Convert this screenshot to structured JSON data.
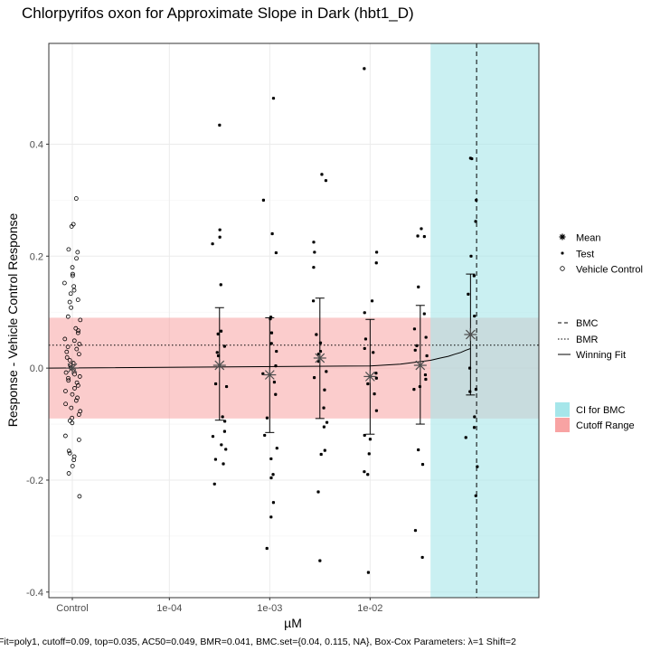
{
  "chart_data": {
    "type": "scatter",
    "title": "Chlorpyrifos oxon for Approximate Slope in Dark (hbt1_D)",
    "xlabel": "µM",
    "ylabel": "Response - Vehicle Control Response",
    "footnote": "Fit=poly1, cutoff=0.09, top=0.035, AC50=0.049, BMR=0.041, BMC.set={0.04, 0.115, NA}, Box-Cox Parameters: λ=1 Shift=2",
    "x_scale": "log10",
    "x_ticks": [
      {
        "label": "Control",
        "value": "control"
      },
      {
        "label": "1e-04",
        "value": 0.0001
      },
      {
        "label": "1e-03",
        "value": 0.001
      },
      {
        "label": "1e-02",
        "value": 0.01
      }
    ],
    "y_ticks": [
      -0.4,
      -0.2,
      0.0,
      0.2,
      0.4
    ],
    "xlim": [
      6.3e-06,
      0.48
    ],
    "ylim": [
      -0.41,
      0.58
    ],
    "grid": true,
    "legend_placement": "right",
    "legend": {
      "markers": [
        {
          "label": "Mean",
          "symbol": "asterisk"
        },
        {
          "label": "Test",
          "symbol": "dot"
        },
        {
          "label": "Vehicle Control",
          "symbol": "open-circle"
        }
      ],
      "lines": [
        {
          "label": "BMC",
          "style": "dashed"
        },
        {
          "label": "BMR",
          "style": "dotted"
        },
        {
          "label": "Winning Fit",
          "style": "solid"
        }
      ],
      "fills": [
        {
          "label": "CI for BMC",
          "color": "#a6e6ea"
        },
        {
          "label": "Cutoff Range",
          "color": "#f8a3a3"
        }
      ]
    },
    "colors": {
      "ci_band": "#a6e6ea",
      "cutoff_band": "#f8a3a3",
      "points": "#000000",
      "mean": "#4d4d4d"
    },
    "cutoff": 0.09,
    "bmr": 0.041,
    "bmc": 0.115,
    "bmc_ci": [
      0.04,
      0.48
    ],
    "fit_curve": {
      "x": [
        6.3e-06,
        0.01,
        0.02,
        0.03,
        0.04,
        0.05,
        0.06,
        0.07,
        0.08,
        0.09,
        0.1
      ],
      "y": [
        0.0,
        0.004,
        0.007,
        0.011,
        0.014,
        0.018,
        0.021,
        0.025,
        0.028,
        0.032,
        0.035
      ]
    },
    "means": [
      {
        "x": "control",
        "mean": 0.0
      },
      {
        "x": 0.000316,
        "mean": 0.005,
        "lower": -0.093,
        "upper": 0.108
      },
      {
        "x": 0.001,
        "mean": -0.012,
        "lower": -0.115,
        "upper": 0.09
      },
      {
        "x": 0.00316,
        "mean": 0.018,
        "lower": -0.09,
        "upper": 0.125
      },
      {
        "x": 0.01,
        "mean": -0.015,
        "lower": -0.118,
        "upper": 0.087
      },
      {
        "x": 0.0316,
        "mean": 0.005,
        "lower": -0.1,
        "upper": 0.112
      },
      {
        "x": 0.1,
        "mean": 0.06,
        "lower": -0.048,
        "upper": 0.168
      }
    ],
    "vehicle_control": [
      0.303,
      0.257,
      0.253,
      0.212,
      0.207,
      0.196,
      0.18,
      0.168,
      0.165,
      0.152,
      0.146,
      0.139,
      0.133,
      0.122,
      0.118,
      0.108,
      0.092,
      0.086,
      0.071,
      0.067,
      0.063,
      0.052,
      0.049,
      0.043,
      0.038,
      0.034,
      0.029,
      0.025,
      0.019,
      0.014,
      0.009,
      0.005,
      0.001,
      -0.003,
      -0.008,
      -0.011,
      -0.015,
      -0.018,
      -0.022,
      -0.026,
      -0.031,
      -0.036,
      -0.041,
      -0.047,
      -0.053,
      -0.058,
      -0.064,
      -0.071,
      -0.077,
      -0.083,
      -0.089,
      -0.094,
      -0.098,
      -0.121,
      -0.128,
      -0.148,
      -0.152,
      -0.158,
      -0.164,
      -0.175,
      -0.188,
      -0.229
    ],
    "test_points": [
      {
        "x": 0.000316,
        "y": [
          0.434,
          0.247,
          0.234,
          0.222,
          0.149,
          0.066,
          0.061,
          0.039,
          0.028,
          0.022,
          -0.028,
          -0.033,
          -0.087,
          -0.095,
          -0.113,
          -0.122,
          -0.137,
          -0.145,
          -0.163,
          -0.171,
          -0.207
        ]
      },
      {
        "x": 0.001,
        "y": [
          0.482,
          0.3,
          0.24,
          0.206,
          0.091,
          0.088,
          0.063,
          0.044,
          0.03,
          0.004,
          -0.01,
          -0.025,
          -0.047,
          -0.089,
          -0.12,
          -0.143,
          -0.162,
          -0.19,
          -0.196,
          -0.24,
          -0.266,
          -0.322
        ]
      },
      {
        "x": 0.00316,
        "y": [
          0.346,
          0.335,
          0.225,
          0.207,
          0.18,
          0.12,
          0.06,
          0.045,
          0.03,
          0.025,
          0.012,
          -0.006,
          -0.017,
          -0.039,
          -0.071,
          -0.097,
          -0.105,
          -0.147,
          -0.154,
          -0.221,
          -0.344
        ]
      },
      {
        "x": 0.01,
        "y": [
          0.535,
          0.207,
          0.188,
          0.12,
          0.099,
          0.052,
          0.035,
          0.028,
          -0.009,
          -0.018,
          -0.028,
          -0.046,
          -0.076,
          -0.12,
          -0.127,
          -0.153,
          -0.185,
          -0.19,
          -0.365
        ]
      },
      {
        "x": 0.0316,
        "y": [
          0.249,
          0.236,
          0.235,
          0.145,
          0.097,
          0.07,
          0.055,
          0.04,
          0.032,
          0.022,
          -0.012,
          -0.02,
          -0.033,
          -0.038,
          -0.146,
          -0.172,
          -0.29,
          -0.338
        ]
      },
      {
        "x": 0.1,
        "y": [
          0.374,
          0.375,
          0.3,
          0.262,
          0.2,
          0.165,
          0.132,
          0.093,
          0.0,
          -0.038,
          -0.042,
          -0.087,
          -0.106,
          -0.124,
          -0.176,
          -0.228
        ]
      }
    ]
  }
}
